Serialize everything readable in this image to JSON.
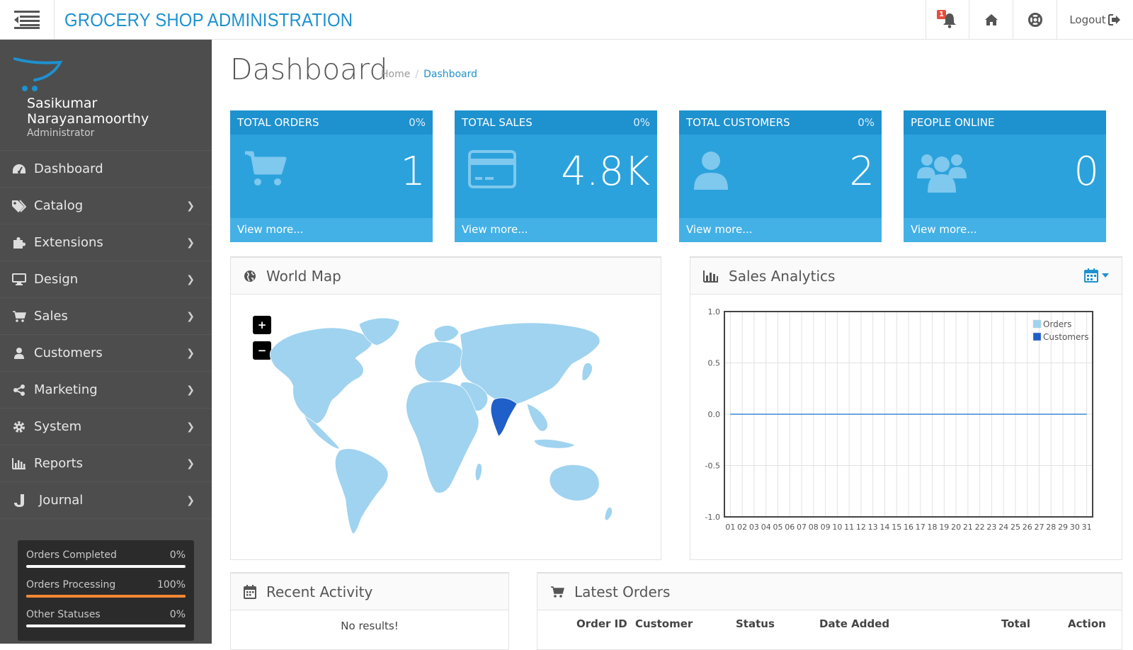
{
  "header": {
    "title": "GROCERY SHOP ADMINISTRATION",
    "notification_count": "1",
    "logout_label": "Logout"
  },
  "sidebar": {
    "user_name": "Sasikumar Narayanamoorthy",
    "user_role": "Administrator",
    "items": [
      {
        "label": "Dashboard",
        "icon": "dashboard-icon",
        "has_children": false
      },
      {
        "label": "Catalog",
        "icon": "tags-icon",
        "has_children": true
      },
      {
        "label": "Extensions",
        "icon": "puzzle-icon",
        "has_children": true
      },
      {
        "label": "Design",
        "icon": "monitor-icon",
        "has_children": true
      },
      {
        "label": "Sales",
        "icon": "cart-icon",
        "has_children": true
      },
      {
        "label": "Customers",
        "icon": "user-icon",
        "has_children": true
      },
      {
        "label": "Marketing",
        "icon": "share-icon",
        "has_children": true
      },
      {
        "label": "System",
        "icon": "gear-icon",
        "has_children": true
      },
      {
        "label": "Reports",
        "icon": "bar-chart-icon",
        "has_children": true
      },
      {
        "label": "Journal",
        "icon": "journal-icon",
        "has_children": true
      }
    ],
    "stats": [
      {
        "label": "Orders Completed",
        "value": "0%",
        "fill": 0
      },
      {
        "label": "Orders Processing",
        "value": "100%",
        "fill": 1
      },
      {
        "label": "Other Statuses",
        "value": "0%",
        "fill": 0
      }
    ]
  },
  "page": {
    "title": "Dashboard",
    "breadcrumb": {
      "home": "Home",
      "separator": "/",
      "current": "Dashboard"
    }
  },
  "tiles": [
    {
      "label": "TOTAL ORDERS",
      "percent": "0%",
      "value": "1",
      "link": "View more...",
      "icon": "cart-icon"
    },
    {
      "label": "TOTAL SALES",
      "percent": "0%",
      "value": "4.8K",
      "link": "View more...",
      "icon": "credit-card-icon"
    },
    {
      "label": "TOTAL CUSTOMERS",
      "percent": "0%",
      "value": "2",
      "link": "View more...",
      "icon": "user-icon"
    },
    {
      "label": "PEOPLE ONLINE",
      "percent": "",
      "value": "0",
      "link": "View more...",
      "icon": "users-icon"
    }
  ],
  "world_map": {
    "title": "World Map",
    "zoom_in": "+",
    "zoom_out": "−",
    "highlighted_country": "India",
    "land_color": "#9fd3f0",
    "highlight_color": "#1e5fc9"
  },
  "sales_analytics": {
    "title": "Sales Analytics"
  },
  "chart_data": {
    "type": "line",
    "x": [
      "01",
      "02",
      "03",
      "04",
      "05",
      "06",
      "07",
      "08",
      "09",
      "10",
      "11",
      "12",
      "13",
      "14",
      "15",
      "16",
      "17",
      "18",
      "19",
      "20",
      "21",
      "22",
      "23",
      "24",
      "25",
      "26",
      "27",
      "28",
      "29",
      "30",
      "31"
    ],
    "series": [
      {
        "name": "Orders",
        "color": "#9fd3f0",
        "values": [
          0,
          0,
          0,
          0,
          0,
          0,
          0,
          0,
          0,
          0,
          0,
          0,
          0,
          0,
          0,
          0,
          0,
          0,
          0,
          0,
          0,
          0,
          0,
          0,
          0,
          0,
          0,
          0,
          0,
          0,
          0
        ]
      },
      {
        "name": "Customers",
        "color": "#1e5fc9",
        "values": [
          0,
          0,
          0,
          0,
          0,
          0,
          0,
          0,
          0,
          0,
          0,
          0,
          0,
          0,
          0,
          0,
          0,
          0,
          0,
          0,
          0,
          0,
          0,
          0,
          0,
          0,
          0,
          0,
          0,
          0,
          0
        ]
      }
    ],
    "yticks": [
      "1.0",
      "0.5",
      "0.0",
      "-0.5",
      "-1.0"
    ],
    "ylim": [
      -1,
      1
    ],
    "grid": true,
    "legend": "top-right"
  },
  "recent_activity": {
    "title": "Recent Activity",
    "empty_text": "No results!"
  },
  "latest_orders": {
    "title": "Latest Orders",
    "columns": [
      "Order ID",
      "Customer",
      "Status",
      "Date Added",
      "Total",
      "Action"
    ]
  },
  "colors": {
    "accent": "#1e91cf",
    "sidebar_bg": "#4d4d4d",
    "tile_body": "#2ba2dc",
    "progress": "#f38733"
  }
}
